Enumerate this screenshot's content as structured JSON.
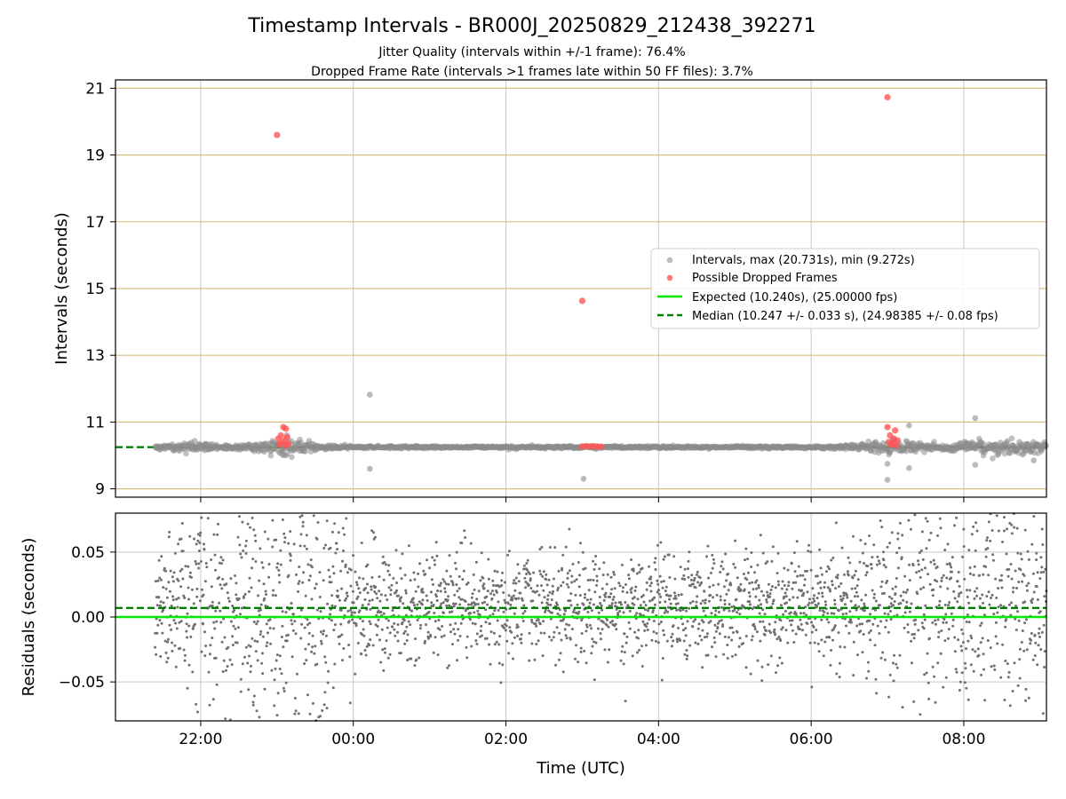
{
  "chart_data": {
    "type": "scatter",
    "title": "Timestamp Intervals - BR000J_20250829_212438_392271",
    "subtitle_lines": [
      "Jitter Quality (intervals within +/-1 frame): 76.4%",
      "Dropped Frame Rate (intervals >1 frames late within 50 FF files): 3.7%"
    ],
    "xlabel": "Time (UTC)",
    "xlim": [
      "2025-08-29T20:53",
      "2025-08-30T09:05"
    ],
    "xticks": [
      {
        "t": "2025-08-29T22:00",
        "label": "22:00"
      },
      {
        "t": "2025-08-30T00:00",
        "label": "00:00"
      },
      {
        "t": "2025-08-30T02:00",
        "label": "02:00"
      },
      {
        "t": "2025-08-30T04:00",
        "label": "04:00"
      },
      {
        "t": "2025-08-30T06:00",
        "label": "06:00"
      },
      {
        "t": "2025-08-30T08:00",
        "label": "08:00"
      }
    ],
    "data_span": {
      "start": "2025-08-29T21:24",
      "end": "2025-08-30T09:05"
    },
    "grid": true,
    "top_panel": {
      "ylabel": "Intervals (seconds)",
      "ylim": [
        8.75,
        21.25
      ],
      "yticks": [
        9,
        11,
        13,
        15,
        17,
        19,
        21
      ],
      "legend_position": "center-right",
      "legend": [
        {
          "label": "Intervals, max (20.731s), min (9.272s)",
          "kind": "marker",
          "color": "#8c8c8c"
        },
        {
          "label": "Possible Dropped Frames",
          "kind": "marker",
          "color": "#ff5555"
        },
        {
          "label": "Expected (10.240s), (25.00000 fps)",
          "kind": "line",
          "color": "#00e600"
        },
        {
          "label": "Median (10.247 +/- 0.033 s), (24.98385 +/- 0.08 fps)",
          "kind": "dashed-line",
          "color": "#008000"
        }
      ],
      "expected": 10.24,
      "median": 10.247,
      "interval_outliers": [
        {
          "t": "2025-08-30T00:13",
          "y": 11.82
        },
        {
          "t": "2025-08-30T00:13",
          "y": 9.6
        },
        {
          "t": "2025-08-30T03:01",
          "y": 9.3
        },
        {
          "t": "2025-08-30T07:00",
          "y": 9.27
        },
        {
          "t": "2025-08-30T07:00",
          "y": 9.75
        },
        {
          "t": "2025-08-30T07:17",
          "y": 10.9
        },
        {
          "t": "2025-08-30T07:17",
          "y": 9.62
        },
        {
          "t": "2025-08-30T08:09",
          "y": 11.12
        },
        {
          "t": "2025-08-30T08:09",
          "y": 9.72
        },
        {
          "t": "2025-08-29T23:05",
          "y": 10.0
        },
        {
          "t": "2025-08-30T08:55",
          "y": 9.85
        }
      ],
      "dropped_frames": [
        {
          "t": "2025-08-29T23:00",
          "y": 19.6
        },
        {
          "t": "2025-08-30T03:00",
          "y": 14.63
        },
        {
          "t": "2025-08-30T07:00",
          "y": 20.73
        },
        {
          "t": "2025-08-29T23:05",
          "y": 10.85
        },
        {
          "t": "2025-08-29T23:07",
          "y": 10.8
        },
        {
          "t": "2025-08-29T23:03",
          "y": 10.6
        },
        {
          "t": "2025-08-29T23:08",
          "y": 10.55
        },
        {
          "t": "2025-08-29T23:01",
          "y": 10.5
        },
        {
          "t": "2025-08-29T23:06",
          "y": 10.45
        },
        {
          "t": "2025-08-29T23:04",
          "y": 10.4
        },
        {
          "t": "2025-08-29T23:09",
          "y": 10.35
        },
        {
          "t": "2025-08-29T23:02",
          "y": 10.32
        },
        {
          "t": "2025-08-29T23:07",
          "y": 10.3
        },
        {
          "t": "2025-08-30T03:00",
          "y": 10.27
        },
        {
          "t": "2025-08-30T03:03",
          "y": 10.28
        },
        {
          "t": "2025-08-30T03:06",
          "y": 10.26
        },
        {
          "t": "2025-08-30T03:09",
          "y": 10.28
        },
        {
          "t": "2025-08-30T03:12",
          "y": 10.27
        },
        {
          "t": "2025-08-30T03:15",
          "y": 10.26
        },
        {
          "t": "2025-08-30T07:00",
          "y": 10.85
        },
        {
          "t": "2025-08-30T07:06",
          "y": 10.75
        },
        {
          "t": "2025-08-30T07:02",
          "y": 10.6
        },
        {
          "t": "2025-08-30T07:05",
          "y": 10.5
        },
        {
          "t": "2025-08-30T07:08",
          "y": 10.45
        },
        {
          "t": "2025-08-30T07:01",
          "y": 10.4
        },
        {
          "t": "2025-08-30T07:04",
          "y": 10.35
        },
        {
          "t": "2025-08-30T07:07",
          "y": 10.3
        },
        {
          "t": "2025-08-30T07:03",
          "y": 10.32
        }
      ]
    },
    "bottom_panel": {
      "ylabel": "Residuals (seconds)",
      "ylim": [
        -0.08,
        0.08
      ],
      "yticks": [
        {
          "value": -0.05,
          "label": "−0.05"
        },
        {
          "value": 0.0,
          "label": "0.00"
        },
        {
          "value": 0.05,
          "label": "0.05"
        }
      ],
      "expected": 0.0,
      "median": 0.007
    }
  },
  "colors": {
    "intervals": "#8c8c8c",
    "dropped": "#ff5555",
    "expected": "#00e600",
    "median": "#008000",
    "residual_points": "#707070",
    "top_grid_horizontal": "#d9bf80",
    "grid": "#c8c8c8"
  }
}
